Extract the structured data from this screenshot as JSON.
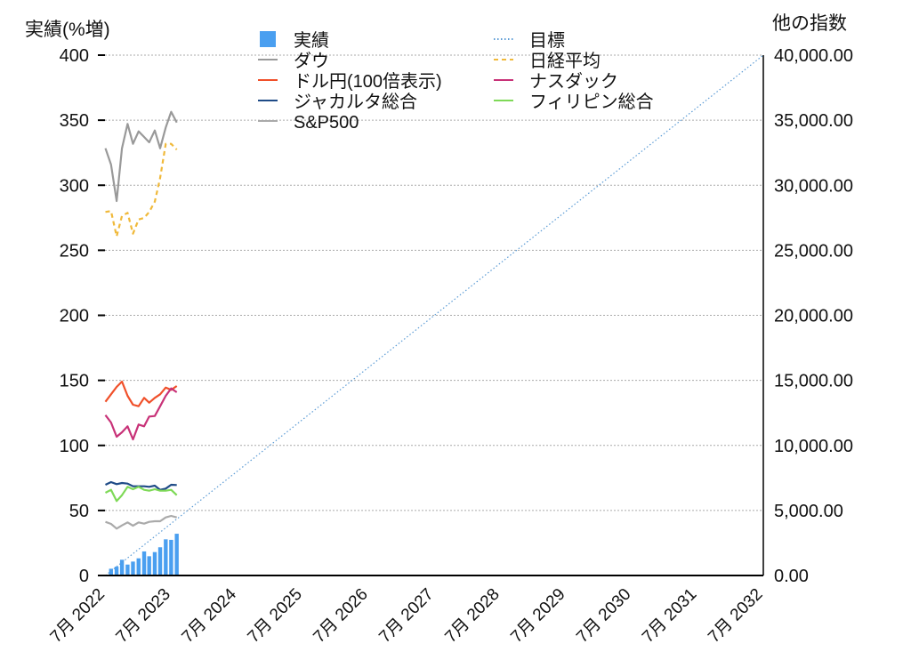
{
  "chart_data": {
    "type": "bar+line",
    "left_axis": {
      "label": "実績(%増)",
      "ylim": [
        0,
        400
      ],
      "ticks": [
        "0",
        "50",
        "100",
        "150",
        "200",
        "250",
        "300",
        "350",
        "400"
      ]
    },
    "right_axis": {
      "label": "他の指数",
      "ylim": [
        0,
        40000
      ],
      "ticks": [
        "0.00",
        "5,000.00",
        "10,000.00",
        "15,000.00",
        "20,000.00",
        "25,000.00",
        "30,000.00",
        "35,000.00",
        "40,000.00"
      ]
    },
    "x_axis": {
      "xlim": [
        "2022-05-20",
        "2032-07-01"
      ],
      "ticks": [
        {
          "date": "2022-07-01",
          "label": "7月 2022"
        },
        {
          "date": "2023-07-01",
          "label": "7月 2023"
        },
        {
          "date": "2024-07-01",
          "label": "7月 2024"
        },
        {
          "date": "2025-07-01",
          "label": "7月 2025"
        },
        {
          "date": "2026-07-01",
          "label": "7月 2026"
        },
        {
          "date": "2027-07-01",
          "label": "7月 2027"
        },
        {
          "date": "2028-07-01",
          "label": "7月 2028"
        },
        {
          "date": "2029-07-01",
          "label": "7月 2029"
        },
        {
          "date": "2030-07-01",
          "label": "7月 2030"
        },
        {
          "date": "2031-07-01",
          "label": "7月 2031"
        },
        {
          "date": "2032-07-01",
          "label": "7月 2032"
        }
      ]
    },
    "grid": true,
    "legend_placement": "top",
    "line_dates": [
      "2022-07-01",
      "2022-08-01",
      "2022-09-01",
      "2022-10-01",
      "2022-11-01",
      "2022-12-01",
      "2023-01-01",
      "2023-02-01",
      "2023-03-01",
      "2023-04-01",
      "2023-05-01",
      "2023-06-01",
      "2023-07-01",
      "2023-08-01"
    ],
    "bars": {
      "name": "実績",
      "axis": "left",
      "color": "#4a9ff0",
      "dates": [
        "2022-08-01",
        "2022-09-01",
        "2022-10-01",
        "2022-11-01",
        "2022-12-01",
        "2023-01-01",
        "2023-02-01",
        "2023-03-01",
        "2023-04-01",
        "2023-05-01",
        "2023-06-01",
        "2023-07-01",
        "2023-08-01"
      ],
      "values": [
        5.2,
        6.8,
        12.1,
        8.4,
        10.7,
        13.2,
        18.5,
        14.8,
        18.0,
        21.7,
        27.8,
        27.4,
        32.1
      ]
    },
    "target": {
      "name": "目標",
      "axis": "left",
      "color": "#5b9bd5",
      "style": "dotted",
      "points": [
        {
          "date": "2022-07-01",
          "value": 0
        },
        {
          "date": "2032-07-01",
          "value": 400
        }
      ]
    },
    "series": [
      {
        "name": "ダウ",
        "axis": "right",
        "color": "#999999",
        "style": "solid",
        "values": [
          32843,
          31592,
          28788,
          32843,
          34717,
          33185,
          34142,
          33711,
          33301,
          34211,
          32843,
          34443,
          35647,
          34826
        ]
      },
      {
        "name": "日経平均",
        "axis": "right",
        "color": "#f0b93a",
        "style": "dashed",
        "values": [
          27946,
          28015,
          26074,
          27646,
          27879,
          26279,
          27373,
          27489,
          27946,
          28740,
          30566,
          33185,
          33185,
          32733
        ]
      },
      {
        "name": "ドル円(100倍表示)",
        "axis": "right",
        "color": "#f0502a",
        "style": "solid",
        "values": [
          13355,
          13929,
          14497,
          14907,
          13813,
          13129,
          13013,
          13655,
          13286,
          13655,
          13929,
          14449,
          14271,
          14565
        ]
      },
      {
        "name": "ナスダック",
        "axis": "right",
        "color": "#c83278",
        "style": "solid",
        "values": [
          12329,
          11761,
          10667,
          11009,
          11467,
          10462,
          11604,
          11467,
          12220,
          12261,
          13013,
          13813,
          14380,
          14086
        ]
      },
      {
        "name": "ジャカルタ総合",
        "axis": "right",
        "color": "#1f4b87",
        "style": "solid",
        "values": [
          6975,
          7180,
          7023,
          7112,
          7064,
          6858,
          6858,
          6858,
          6817,
          6906,
          6585,
          6681,
          6975,
          6954
        ]
      },
      {
        "name": "フィリピン総合",
        "axis": "right",
        "color": "#7ed957",
        "style": "solid",
        "values": [
          6359,
          6585,
          5723,
          6175,
          6817,
          6633,
          6817,
          6585,
          6517,
          6633,
          6517,
          6517,
          6585,
          6175
        ]
      },
      {
        "name": "S&P500",
        "axis": "right",
        "color": "#aaaaaa",
        "style": "solid",
        "values": [
          4123,
          3966,
          3604,
          3850,
          4082,
          3829,
          4082,
          3987,
          4123,
          4171,
          4171,
          4465,
          4581,
          4465
        ]
      }
    ],
    "legend": [
      {
        "name": "実績",
        "marker": "square",
        "color": "#4a9ff0"
      },
      {
        "name": "ダウ",
        "marker": "line",
        "color": "#999999"
      },
      {
        "name": "ドル円(100倍表示)",
        "marker": "line",
        "color": "#f0502a"
      },
      {
        "name": "ジャカルタ総合",
        "marker": "line",
        "color": "#1f4b87"
      },
      {
        "name": "S&P500",
        "marker": "line",
        "color": "#aaaaaa"
      },
      {
        "name": "目標",
        "marker": "dotted",
        "color": "#5b9bd5"
      },
      {
        "name": "日経平均",
        "marker": "dashed",
        "color": "#f0b93a"
      },
      {
        "name": "ナスダック",
        "marker": "line",
        "color": "#c83278"
      },
      {
        "name": "フィリピン総合",
        "marker": "line",
        "color": "#7ed957"
      }
    ]
  }
}
